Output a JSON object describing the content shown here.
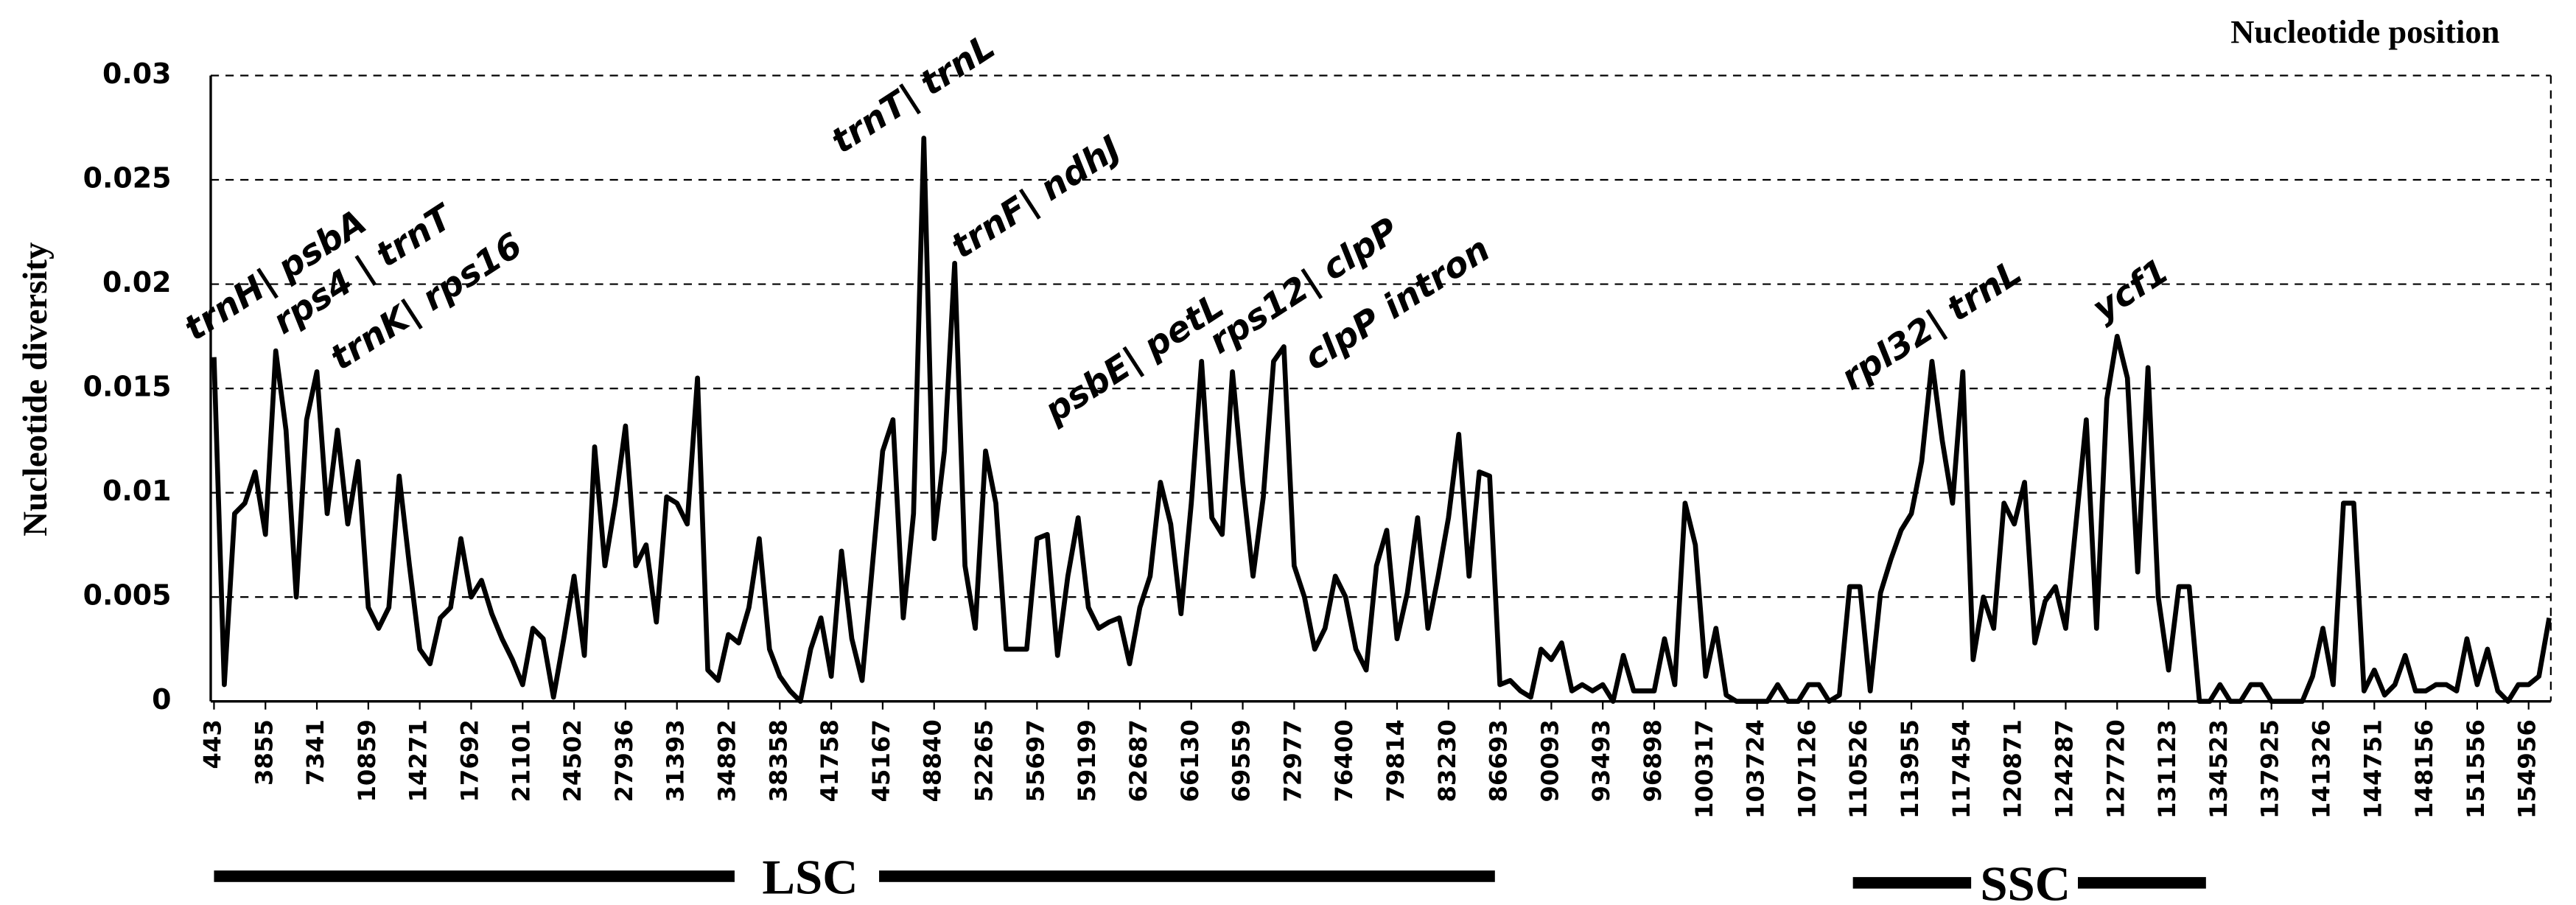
{
  "chart_data": {
    "type": "line",
    "title": "Nucleotide position",
    "y_label": "Nucleotide diversity",
    "color": "#000000",
    "ylim": [
      0,
      0.03
    ],
    "yticks": [
      0,
      0.005,
      0.01,
      0.015,
      0.02,
      0.025,
      0.03
    ],
    "grid": true,
    "categories": [
      "443",
      null,
      null,
      null,
      null,
      "3855",
      null,
      null,
      null,
      null,
      "7341",
      null,
      null,
      null,
      null,
      "10859",
      null,
      null,
      null,
      null,
      "14271",
      null,
      null,
      null,
      null,
      "17692",
      null,
      null,
      null,
      null,
      "21101",
      null,
      null,
      null,
      null,
      "24502",
      null,
      null,
      null,
      null,
      "27936",
      null,
      null,
      null,
      null,
      "31393",
      null,
      null,
      null,
      null,
      "34892",
      null,
      null,
      null,
      null,
      "38358",
      null,
      null,
      null,
      null,
      "41758",
      null,
      null,
      null,
      null,
      "45167",
      null,
      null,
      null,
      null,
      "48840",
      null,
      null,
      null,
      null,
      "52265",
      null,
      null,
      null,
      null,
      "55697",
      null,
      null,
      null,
      null,
      "59199",
      null,
      null,
      null,
      null,
      "62687",
      null,
      null,
      null,
      null,
      "66130",
      null,
      null,
      null,
      null,
      "69559",
      null,
      null,
      null,
      null,
      "72977",
      null,
      null,
      null,
      null,
      "76400",
      null,
      null,
      null,
      null,
      "79814",
      null,
      null,
      null,
      null,
      "83230",
      null,
      null,
      null,
      null,
      "86693",
      null,
      null,
      null,
      null,
      "90093",
      null,
      null,
      null,
      null,
      "93493",
      null,
      null,
      null,
      null,
      "96898",
      null,
      null,
      null,
      null,
      "100317",
      null,
      null,
      null,
      null,
      "103724",
      null,
      null,
      null,
      null,
      "107126",
      null,
      null,
      null,
      null,
      "110526",
      null,
      null,
      null,
      null,
      "113955",
      null,
      null,
      null,
      null,
      "117454",
      null,
      null,
      null,
      null,
      "120871",
      null,
      null,
      null,
      null,
      "124287",
      null,
      null,
      null,
      null,
      "127720",
      null,
      null,
      null,
      null,
      "131123",
      null,
      null,
      null,
      null,
      "134523",
      null,
      null,
      null,
      null,
      "137925",
      null,
      null,
      null,
      null,
      "141326",
      null,
      null,
      null,
      null,
      "144751",
      null,
      null,
      null,
      null,
      "148156",
      null,
      null,
      null,
      null,
      "151556",
      null,
      null,
      null,
      null,
      "154956",
      null,
      null
    ],
    "values": [
      0.0165,
      0.0008,
      0.009,
      0.0095,
      0.011,
      0.008,
      0.0168,
      0.013,
      0.005,
      0.0135,
      0.0158,
      0.009,
      0.013,
      0.0085,
      0.0115,
      0.0045,
      0.0035,
      0.0045,
      0.0108,
      0.0065,
      0.0025,
      0.0018,
      0.004,
      0.0045,
      0.0078,
      0.005,
      0.0058,
      0.0042,
      0.003,
      0.002,
      0.0008,
      0.0035,
      0.003,
      0.0002,
      0.003,
      0.006,
      0.0022,
      0.0122,
      0.0065,
      0.0095,
      0.0132,
      0.0065,
      0.0075,
      0.0038,
      0.0098,
      0.0095,
      0.0085,
      0.0155,
      0.0015,
      0.001,
      0.0032,
      0.0028,
      0.0045,
      0.0078,
      0.0025,
      0.0012,
      0.0005,
      0,
      0.0025,
      0.004,
      0.0012,
      0.0072,
      0.003,
      0.001,
      0.0065,
      0.012,
      0.0135,
      0.004,
      0.009,
      0.027,
      0.0078,
      0.012,
      0.021,
      0.0065,
      0.0035,
      0.012,
      0.0095,
      0.0025,
      0.0025,
      0.0025,
      0.0078,
      0.008,
      0.0022,
      0.006,
      0.0088,
      0.0045,
      0.0035,
      0.0038,
      0.004,
      0.0018,
      0.0045,
      0.006,
      0.0105,
      0.0085,
      0.0042,
      0.0095,
      0.0163,
      0.0088,
      0.008,
      0.0158,
      0.0105,
      0.006,
      0.0098,
      0.0163,
      0.017,
      0.0065,
      0.005,
      0.0025,
      0.0035,
      0.006,
      0.005,
      0.0025,
      0.0015,
      0.0065,
      0.0082,
      0.003,
      0.0052,
      0.0088,
      0.0035,
      0.006,
      0.0088,
      0.0128,
      0.006,
      0.011,
      0.0108,
      0.0008,
      0.001,
      0.0005,
      0.0002,
      0.0025,
      0.002,
      0.0028,
      0.0005,
      0.0008,
      0.0005,
      0.0008,
      0,
      0.0022,
      0.0005,
      0.0005,
      0.0005,
      0.003,
      0.0008,
      0.0095,
      0.0075,
      0.0012,
      0.0035,
      0.0003,
      0,
      0,
      0,
      0,
      0.0008,
      0,
      0,
      0.0008,
      0.0008,
      0,
      0.0003,
      0.0055,
      0.0055,
      0.0005,
      0.0052,
      0.0068,
      0.0082,
      0.009,
      0.0115,
      0.0163,
      0.0125,
      0.0095,
      0.0158,
      0.002,
      0.005,
      0.0035,
      0.0095,
      0.0085,
      0.0105,
      0.0028,
      0.0048,
      0.0055,
      0.0035,
      0.0085,
      0.0135,
      0.0035,
      0.0145,
      0.0175,
      0.0155,
      0.0062,
      0.016,
      0.005,
      0.0015,
      0.0055,
      0.0055,
      0,
      0,
      0.0008,
      0,
      0,
      0.0008,
      0.0008,
      0,
      0,
      0,
      0,
      0.0012,
      0.0035,
      0.0008,
      0.0095,
      0.0095,
      0.0005,
      0.0015,
      0.0003,
      0.0008,
      0.0022,
      0.0005,
      0.0005,
      0.0008,
      0.0008,
      0.0005,
      0.003,
      0.0008,
      0.0025,
      0.0005,
      0,
      0.0008,
      0.0008,
      0.0012,
      0.004
    ],
    "annotations": [
      "trnH| psbA",
      "rps4 | trnT",
      "trnK| rps16",
      "trnT| trnL",
      "trnF| ndhJ",
      "psbE| petL",
      "rps12| clpP",
      "clpP intron",
      "rpl32| trnL",
      "ycf1"
    ],
    "regions": [
      "LSC",
      "SSC"
    ]
  }
}
